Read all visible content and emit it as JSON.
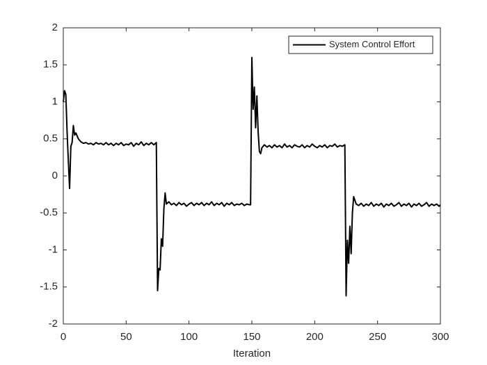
{
  "chart_data": {
    "type": "line",
    "xlabel": "Iteration",
    "x": [
      0,
      1,
      2,
      3,
      4,
      5,
      6,
      7,
      8,
      9,
      10,
      12,
      14,
      16,
      18,
      20,
      22,
      24,
      26,
      28,
      30,
      32,
      34,
      36,
      38,
      40,
      42,
      44,
      46,
      48,
      50,
      52,
      54,
      56,
      58,
      60,
      62,
      64,
      66,
      68,
      70,
      72,
      74,
      75,
      76,
      77,
      78,
      79,
      80,
      81,
      82,
      84,
      86,
      88,
      90,
      92,
      94,
      96,
      98,
      100,
      102,
      104,
      106,
      108,
      110,
      112,
      114,
      116,
      118,
      120,
      122,
      124,
      126,
      128,
      130,
      132,
      134,
      136,
      138,
      140,
      142,
      144,
      146,
      148,
      149,
      150,
      151,
      152,
      153,
      154,
      155,
      156,
      157,
      158,
      160,
      162,
      164,
      166,
      168,
      170,
      172,
      174,
      176,
      178,
      180,
      182,
      184,
      186,
      188,
      190,
      192,
      194,
      196,
      198,
      200,
      202,
      204,
      206,
      208,
      210,
      212,
      214,
      216,
      218,
      220,
      222,
      224,
      225,
      226,
      227,
      228,
      229,
      230,
      231,
      232,
      233,
      235,
      237,
      239,
      241,
      243,
      245,
      247,
      249,
      251,
      253,
      255,
      257,
      259,
      261,
      263,
      265,
      267,
      269,
      271,
      273,
      275,
      277,
      279,
      281,
      283,
      285,
      287,
      289,
      291,
      293,
      295,
      297,
      299,
      300
    ],
    "series": [
      {
        "name": "System Control Effort",
        "color": "#000000",
        "values": [
          1.0,
          1.15,
          1.1,
          0.6,
          0.2,
          -0.17,
          0.4,
          0.45,
          0.68,
          0.55,
          0.58,
          0.5,
          0.46,
          0.44,
          0.45,
          0.43,
          0.44,
          0.42,
          0.45,
          0.43,
          0.44,
          0.42,
          0.45,
          0.42,
          0.44,
          0.41,
          0.44,
          0.42,
          0.45,
          0.41,
          0.43,
          0.42,
          0.45,
          0.4,
          0.44,
          0.42,
          0.46,
          0.41,
          0.44,
          0.42,
          0.45,
          0.42,
          0.45,
          -1.55,
          -1.25,
          -1.27,
          -0.85,
          -0.95,
          -0.45,
          -0.23,
          -0.38,
          -0.35,
          -0.39,
          -0.37,
          -0.4,
          -0.36,
          -0.39,
          -0.37,
          -0.41,
          -0.38,
          -0.36,
          -0.4,
          -0.37,
          -0.39,
          -0.36,
          -0.4,
          -0.37,
          -0.39,
          -0.35,
          -0.4,
          -0.37,
          -0.39,
          -0.36,
          -0.41,
          -0.37,
          -0.39,
          -0.36,
          -0.4,
          -0.38,
          -0.39,
          -0.37,
          -0.4,
          -0.38,
          -0.39,
          -0.39,
          1.6,
          0.9,
          1.2,
          0.65,
          1.08,
          0.6,
          0.33,
          0.3,
          0.38,
          0.42,
          0.39,
          0.41,
          0.38,
          0.42,
          0.39,
          0.41,
          0.38,
          0.43,
          0.39,
          0.41,
          0.38,
          0.42,
          0.4,
          0.39,
          0.42,
          0.38,
          0.41,
          0.39,
          0.43,
          0.4,
          0.38,
          0.41,
          0.39,
          0.42,
          0.38,
          0.41,
          0.4,
          0.43,
          0.39,
          0.41,
          0.4,
          0.42,
          -1.62,
          -0.87,
          -1.18,
          -0.68,
          -1.05,
          -0.5,
          -0.28,
          -0.33,
          -0.38,
          -0.4,
          -0.37,
          -0.41,
          -0.38,
          -0.4,
          -0.36,
          -0.41,
          -0.38,
          -0.4,
          -0.37,
          -0.42,
          -0.38,
          -0.4,
          -0.37,
          -0.41,
          -0.39,
          -0.36,
          -0.41,
          -0.38,
          -0.4,
          -0.37,
          -0.42,
          -0.38,
          -0.4,
          -0.37,
          -0.41,
          -0.39,
          -0.36,
          -0.41,
          -0.38,
          -0.4,
          -0.38,
          -0.41,
          -0.39
        ]
      }
    ],
    "xlim": [
      0,
      300
    ],
    "xticks": [
      0,
      50,
      100,
      150,
      200,
      250,
      300
    ],
    "ylim": [
      -2,
      2
    ],
    "yticks": [
      -2,
      -1.5,
      -1,
      -0.5,
      0,
      0.5,
      1,
      1.5,
      2
    ],
    "legend": "upper right",
    "grid": false
  }
}
